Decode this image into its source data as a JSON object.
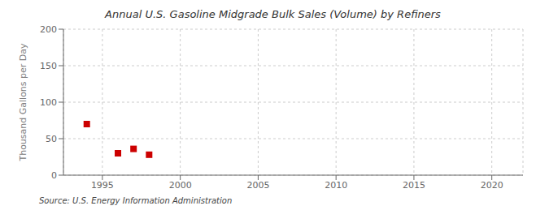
{
  "chart_data": {
    "type": "scatter",
    "title": "Annual U.S. Gasoline Midgrade Bulk Sales (Volume) by Refiners",
    "ylabel": "Thousand Gallons per Day",
    "annotations": [
      "Source: U.S. Energy Information Administration"
    ],
    "x": [
      1994,
      1996,
      1997,
      1998
    ],
    "values": [
      70,
      30,
      36,
      28
    ],
    "color": "#cc0000",
    "marker": "square",
    "xlim": [
      1992.5,
      2022
    ],
    "ylim": [
      0,
      200
    ],
    "xticks": [
      1995,
      2000,
      2005,
      2010,
      2015,
      2020
    ],
    "yticks": [
      0,
      50,
      100,
      150,
      200
    ],
    "grid": true
  }
}
